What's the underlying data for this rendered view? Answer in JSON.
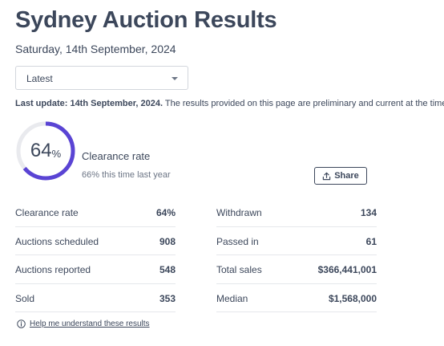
{
  "page": {
    "title": "Sydney Auction Results",
    "date": "Saturday, 14th September, 2024"
  },
  "filter": {
    "selected": "Latest"
  },
  "notice": {
    "bold": "Last update: 14th September, 2024.",
    "text": " The results provided on this page are preliminary and current at the time of publication"
  },
  "clearance": {
    "value": "64",
    "unit": "%",
    "fraction": 0.64,
    "label": "Clearance rate",
    "last_year": "66% this time last year",
    "ring_color": "#5a44d4",
    "track_color": "#e9eaee"
  },
  "share": {
    "label": "Share",
    "icon": "share-icon"
  },
  "stats": {
    "left": [
      {
        "label": "Clearance rate",
        "value": "64%"
      },
      {
        "label": "Auctions scheduled",
        "value": "908"
      },
      {
        "label": "Auctions reported",
        "value": "548"
      },
      {
        "label": "Sold",
        "value": "353"
      }
    ],
    "right": [
      {
        "label": "Withdrawn",
        "value": "134"
      },
      {
        "label": "Passed in",
        "value": "61"
      },
      {
        "label": "Total sales",
        "value": "$366,441,001"
      },
      {
        "label": "Median",
        "value": "$1,568,000"
      }
    ]
  },
  "help": {
    "icon": "info-icon",
    "label": "Help me understand these results"
  }
}
